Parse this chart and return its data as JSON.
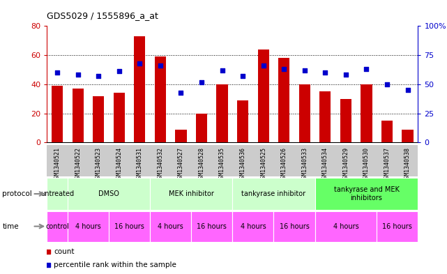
{
  "title": "GDS5029 / 1555896_a_at",
  "samples": [
    "GSM1340521",
    "GSM1340522",
    "GSM1340523",
    "GSM1340524",
    "GSM1340531",
    "GSM1340532",
    "GSM1340527",
    "GSM1340528",
    "GSM1340535",
    "GSM1340536",
    "GSM1340525",
    "GSM1340526",
    "GSM1340533",
    "GSM1340534",
    "GSM1340529",
    "GSM1340530",
    "GSM1340537",
    "GSM1340538"
  ],
  "counts": [
    39,
    37,
    32,
    34,
    73,
    59,
    9,
    20,
    40,
    29,
    64,
    58,
    40,
    35,
    30,
    40,
    15,
    9
  ],
  "percentiles": [
    60,
    58,
    57,
    61,
    68,
    66,
    43,
    52,
    62,
    57,
    66,
    63,
    62,
    60,
    58,
    63,
    50,
    45
  ],
  "bar_color": "#cc0000",
  "dot_color": "#0000cc",
  "left_ylim": [
    0,
    80
  ],
  "right_ylim": [
    0,
    100
  ],
  "left_yticks": [
    0,
    20,
    40,
    60,
    80
  ],
  "right_yticks": [
    0,
    25,
    50,
    75,
    100
  ],
  "left_yticklabels": [
    "0",
    "20",
    "40",
    "60",
    "80"
  ],
  "right_yticklabels": [
    "0",
    "25",
    "50",
    "75",
    "100%"
  ],
  "background_color": "#ffffff",
  "grid_color": "#000000",
  "tick_color_left": "#cc0000",
  "tick_color_right": "#0000cc",
  "legend_count_color": "#cc0000",
  "legend_pct_color": "#0000cc",
  "xtick_bg_color": "#cccccc",
  "proto_light_color": "#ccffcc",
  "proto_bright_color": "#66ff66",
  "time_color": "#ff66ff",
  "proto_groups": [
    {
      "label": "untreated",
      "start": 0,
      "end": 1,
      "bright": false
    },
    {
      "label": "DMSO",
      "start": 1,
      "end": 5,
      "bright": false
    },
    {
      "label": "MEK inhibitor",
      "start": 5,
      "end": 9,
      "bright": false
    },
    {
      "label": "tankyrase inhibitor",
      "start": 9,
      "end": 13,
      "bright": false
    },
    {
      "label": "tankyrase and MEK\ninhibitors",
      "start": 13,
      "end": 18,
      "bright": true
    }
  ],
  "time_groups": [
    {
      "label": "control",
      "start": 0,
      "end": 1
    },
    {
      "label": "4 hours",
      "start": 1,
      "end": 3
    },
    {
      "label": "16 hours",
      "start": 3,
      "end": 5
    },
    {
      "label": "4 hours",
      "start": 5,
      "end": 7
    },
    {
      "label": "16 hours",
      "start": 7,
      "end": 9
    },
    {
      "label": "4 hours",
      "start": 9,
      "end": 11
    },
    {
      "label": "16 hours",
      "start": 11,
      "end": 13
    },
    {
      "label": "4 hours",
      "start": 13,
      "end": 16
    },
    {
      "label": "16 hours",
      "start": 16,
      "end": 18
    }
  ]
}
